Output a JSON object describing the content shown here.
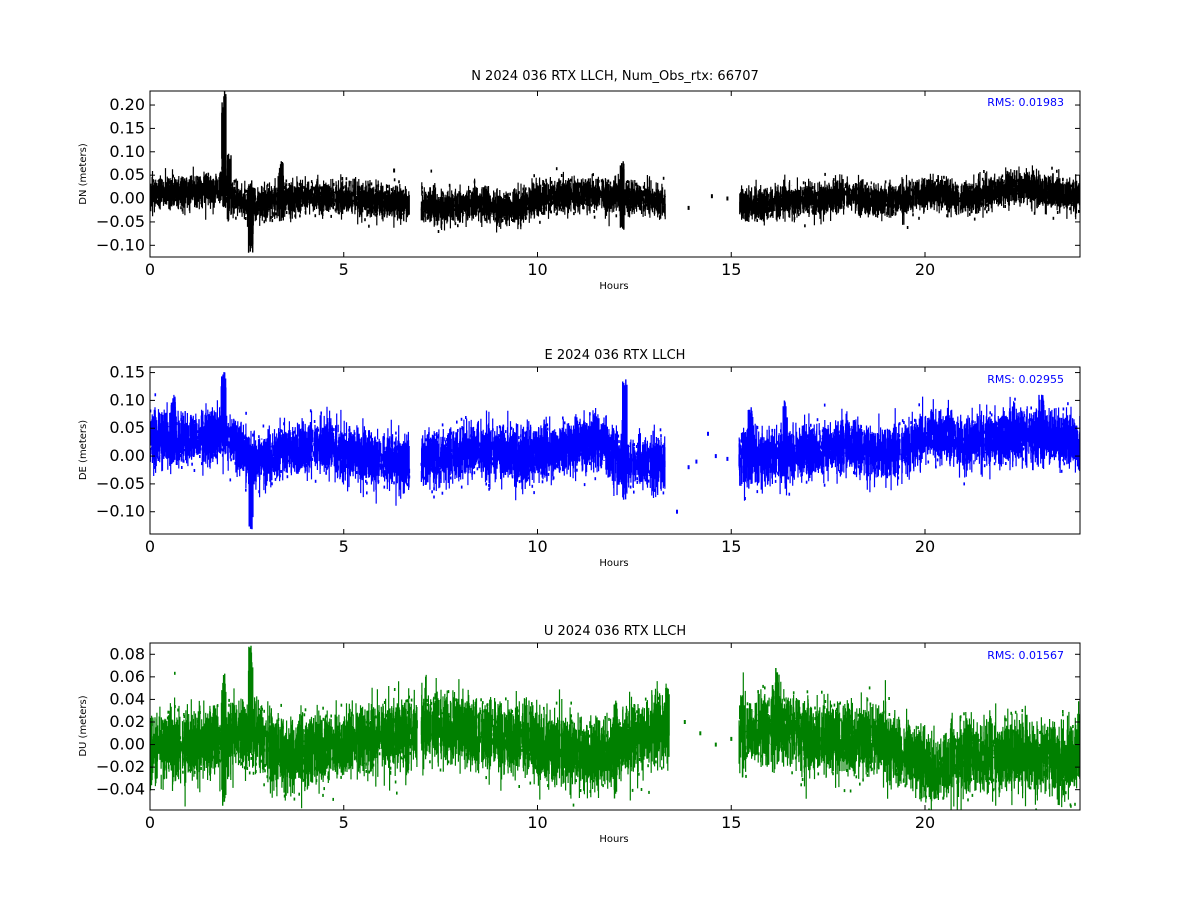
{
  "chart_data": [
    {
      "type": "scatter",
      "title": "N 2024 036 RTX  LLCH, Num_Obs_rtx: 66707",
      "xlabel": "Hours",
      "ylabel": "DN (meters)",
      "annotation": "RMS:  0.01983",
      "annotation_color": "#0000ff",
      "color": "#000000",
      "xlim": [
        0,
        24
      ],
      "ylim": [
        -0.125,
        0.23
      ],
      "xticks": [
        0,
        5,
        10,
        15,
        20
      ],
      "yticks": [
        0.2,
        0.15,
        0.1,
        0.05,
        0.0,
        -0.05,
        -0.1
      ],
      "xtick_labels": [
        "0",
        "5",
        "10",
        "15",
        "20"
      ],
      "ytick_labels": [
        "0.20",
        "0.15",
        "0.10",
        "0.05",
        "0.00",
        "−0.05",
        "−0.10"
      ],
      "segments": [
        [
          0,
          6.7
        ],
        [
          7.0,
          13.3
        ],
        [
          15.2,
          24
        ]
      ],
      "trend": {
        "x": [
          0,
          1,
          1.8,
          2.6,
          3.5,
          4.2,
          5.5,
          6.5,
          7.5,
          8.5,
          9.3,
          10,
          11,
          12.2,
          13.3,
          15.3,
          16.5,
          17.5,
          18,
          19,
          20.3,
          21,
          22.5,
          23.5,
          24
        ],
        "y": [
          0.01,
          0.015,
          0.02,
          -0.015,
          0.0,
          0.005,
          0.0,
          -0.01,
          -0.02,
          -0.01,
          -0.025,
          0.0,
          0.01,
          0.005,
          -0.01,
          -0.015,
          -0.005,
          0.0,
          0.01,
          -0.01,
          0.015,
          0.0,
          0.025,
          0.01,
          0.005
        ]
      },
      "spread": 0.016,
      "spikes": [
        {
          "x": 1.9,
          "from": 0.0,
          "to": 0.23
        },
        {
          "x": 2.05,
          "from": -0.05,
          "to": 0.1
        },
        {
          "x": 2.6,
          "from": -0.12,
          "to": 0.04
        },
        {
          "x": 3.4,
          "from": -0.05,
          "to": 0.08
        },
        {
          "x": 12.2,
          "from": -0.07,
          "to": 0.08
        }
      ],
      "isolated": [
        [
          6.3,
          0.06
        ],
        [
          6.0,
          -0.04
        ],
        [
          14.5,
          0.005
        ],
        [
          14.9,
          0.0
        ],
        [
          13.9,
          -0.02
        ],
        [
          16.2,
          -0.03
        ],
        [
          17.2,
          0.01
        ]
      ]
    },
    {
      "type": "scatter",
      "title": "E 2024 036 RTX  LLCH",
      "xlabel": "Hours",
      "ylabel": "DE (meters)",
      "annotation": "RMS:  0.02955",
      "annotation_color": "#0000ff",
      "color": "#0000ff",
      "xlim": [
        0,
        24
      ],
      "ylim": [
        -0.14,
        0.16
      ],
      "xticks": [
        0,
        5,
        10,
        15,
        20
      ],
      "yticks": [
        0.15,
        0.1,
        0.05,
        0.0,
        -0.05,
        -0.1
      ],
      "xtick_labels": [
        "0",
        "5",
        "10",
        "15",
        "20"
      ],
      "ytick_labels": [
        "0.15",
        "0.10",
        "0.05",
        "0.00",
        "−0.05",
        "−0.10"
      ],
      "segments": [
        [
          0,
          6.7
        ],
        [
          7.0,
          13.3
        ],
        [
          15.2,
          24
        ]
      ],
      "trend": {
        "x": [
          0,
          1,
          1.9,
          2.6,
          3.5,
          4.3,
          5.5,
          6.5,
          7.5,
          8.5,
          9.5,
          10.5,
          11.5,
          12.2,
          13.3,
          15.3,
          16.3,
          17,
          18,
          19,
          20.3,
          21,
          22.5,
          23.5,
          24
        ],
        "y": [
          0.03,
          0.03,
          0.04,
          -0.01,
          0.01,
          0.02,
          0.0,
          -0.015,
          -0.005,
          0.015,
          0.0,
          0.01,
          0.03,
          -0.01,
          -0.02,
          0.0,
          0.0,
          0.01,
          0.02,
          0.0,
          0.04,
          0.02,
          0.04,
          0.03,
          0.02
        ]
      },
      "spread": 0.022,
      "spikes": [
        {
          "x": 1.9,
          "from": 0.0,
          "to": 0.16
        },
        {
          "x": 2.6,
          "from": -0.14,
          "to": 0.02
        },
        {
          "x": 12.25,
          "from": -0.08,
          "to": 0.145
        },
        {
          "x": 0.6,
          "from": -0.02,
          "to": 0.11
        },
        {
          "x": 23.0,
          "from": 0.0,
          "to": 0.11
        },
        {
          "x": 15.5,
          "from": -0.06,
          "to": 0.09
        },
        {
          "x": 16.4,
          "from": -0.06,
          "to": 0.1
        }
      ],
      "isolated": [
        [
          13.6,
          -0.1
        ],
        [
          14.4,
          0.04
        ],
        [
          13.9,
          -0.02
        ],
        [
          14.6,
          0.0
        ],
        [
          14.9,
          -0.005
        ],
        [
          14.1,
          -0.01
        ],
        [
          17.2,
          0.015
        ]
      ]
    },
    {
      "type": "scatter",
      "title": "U 2024 036 RTX  LLCH",
      "xlabel": "Hours",
      "ylabel": "DU (meters)",
      "annotation": "RMS:  0.01567",
      "annotation_color": "#0000ff",
      "color": "#008000",
      "xlim": [
        0,
        24
      ],
      "ylim": [
        -0.058,
        0.09
      ],
      "xticks": [
        0,
        5,
        10,
        15,
        20
      ],
      "yticks": [
        0.08,
        0.06,
        0.04,
        0.02,
        0.0,
        -0.02,
        -0.04
      ],
      "xtick_labels": [
        "0",
        "5",
        "10",
        "15",
        "20"
      ],
      "ytick_labels": [
        "0.08",
        "0.06",
        "0.04",
        "0.02",
        "0.00",
        "−0.02",
        "−0.04"
      ],
      "segments": [
        [
          0,
          6.9
        ],
        [
          7.0,
          13.4
        ],
        [
          15.2,
          24
        ]
      ],
      "trend": {
        "x": [
          0,
          1,
          2,
          2.6,
          3.5,
          4.3,
          5.5,
          6.5,
          7.5,
          8.5,
          9.5,
          10.5,
          11.5,
          12.5,
          13.3,
          15.3,
          16.3,
          17,
          18,
          19,
          20.3,
          21,
          22.5,
          23.5,
          24
        ],
        "y": [
          -0.005,
          0.0,
          0.005,
          0.01,
          -0.01,
          -0.005,
          0.005,
          0.01,
          0.015,
          0.01,
          0.005,
          -0.005,
          -0.01,
          0.005,
          0.015,
          0.01,
          0.02,
          0.005,
          0.005,
          0.0,
          -0.025,
          -0.01,
          -0.01,
          -0.015,
          -0.01
        ]
      },
      "spread": 0.014,
      "spikes": [
        {
          "x": 2.6,
          "from": -0.01,
          "to": 0.09
        },
        {
          "x": 1.9,
          "from": -0.055,
          "to": 0.065
        },
        {
          "x": 16.2,
          "from": -0.02,
          "to": 0.068
        },
        {
          "x": 12.0,
          "from": -0.05,
          "to": 0.04
        }
      ],
      "isolated": [
        [
          14.2,
          0.01
        ],
        [
          14.6,
          0.0
        ],
        [
          15.0,
          0.005
        ],
        [
          13.8,
          0.02
        ],
        [
          6.2,
          -0.025
        ],
        [
          17.3,
          0.005
        ]
      ]
    }
  ]
}
